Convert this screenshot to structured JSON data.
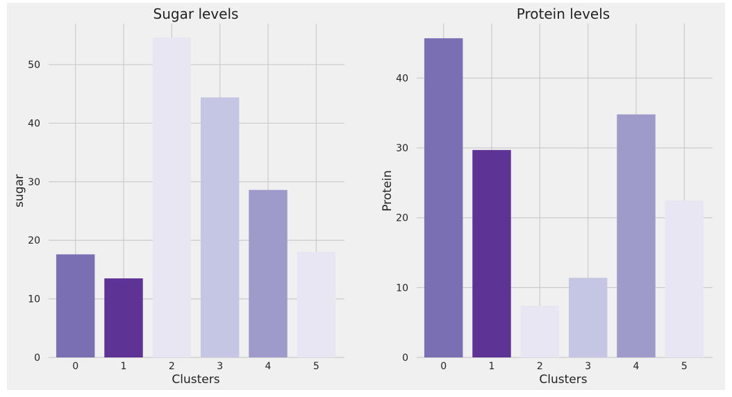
{
  "chart_data": [
    {
      "type": "bar",
      "title": "Sugar levels",
      "xlabel": "Clusters",
      "ylabel": "sugar",
      "categories": [
        "0",
        "1",
        "2",
        "3",
        "4",
        "5"
      ],
      "values": [
        17.6,
        13.5,
        54.6,
        44.4,
        28.6,
        18.0
      ],
      "ylim": [
        0,
        57
      ],
      "yticks": [
        0,
        10,
        20,
        30,
        40,
        50
      ],
      "grid": true,
      "bar_colors": [
        "#7a6fb3",
        "#5d3396",
        "#e8e6f2",
        "#c5c6e3",
        "#9e9bca",
        "#e8e6f2"
      ]
    },
    {
      "type": "bar",
      "title": "Protein levels",
      "xlabel": "Clusters",
      "ylabel": "Protein",
      "categories": [
        "0",
        "1",
        "2",
        "3",
        "4",
        "5"
      ],
      "values": [
        45.7,
        29.7,
        7.4,
        11.4,
        34.8,
        22.5
      ],
      "ylim": [
        0,
        47.8
      ],
      "yticks": [
        0,
        10,
        20,
        30,
        40
      ],
      "grid": true,
      "bar_colors": [
        "#7a6fb3",
        "#5d3396",
        "#e8e6f2",
        "#c5c6e3",
        "#9e9bca",
        "#e8e6f2"
      ]
    }
  ],
  "style": {
    "background": "#f0f0f0",
    "grid_color": "#cbcbcb"
  }
}
